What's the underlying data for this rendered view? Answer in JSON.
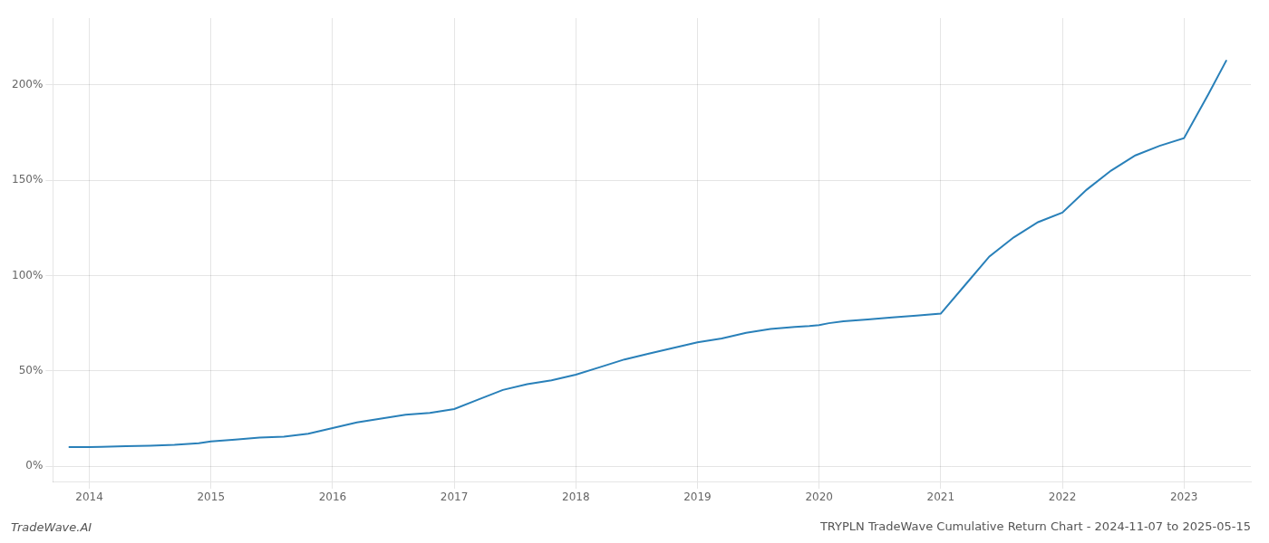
{
  "chart_data": {
    "type": "line",
    "title": "TRYPLN TradeWave Cumulative Return Chart - 2024-11-07 to 2025-05-15",
    "annotations": [
      "TradeWave.AI"
    ],
    "x": [
      2013.83,
      2014.0,
      2014.1,
      2014.3,
      2014.5,
      2014.7,
      2014.9,
      2015.0,
      2015.2,
      2015.4,
      2015.6,
      2015.8,
      2016.0,
      2016.2,
      2016.4,
      2016.6,
      2016.8,
      2017.0,
      2017.2,
      2017.4,
      2017.6,
      2017.8,
      2018.0,
      2018.2,
      2018.4,
      2018.6,
      2018.8,
      2019.0,
      2019.2,
      2019.4,
      2019.6,
      2019.8,
      2019.92,
      2020.0,
      2020.08,
      2020.2,
      2020.4,
      2020.6,
      2020.8,
      2021.0,
      2021.2,
      2021.4,
      2021.6,
      2021.8,
      2022.0,
      2022.2,
      2022.4,
      2022.6,
      2022.8,
      2023.0,
      2023.2,
      2023.35
    ],
    "values": [
      10,
      10,
      10.2,
      10.5,
      10.8,
      11.2,
      12,
      13,
      14,
      15,
      15.5,
      17,
      20,
      23,
      25,
      27,
      28,
      30,
      35,
      40,
      43,
      45,
      48,
      52,
      56,
      59,
      62,
      65,
      67,
      70,
      72,
      73,
      73.5,
      74,
      75,
      76,
      77,
      78,
      79,
      80,
      95,
      110,
      120,
      128,
      133,
      145,
      155,
      163,
      168,
      172,
      195,
      213
    ],
    "color": "#2980b9",
    "xlim": [
      2013.7,
      2023.55
    ],
    "xticks": [
      2014,
      2015,
      2016,
      2017,
      2018,
      2019,
      2020,
      2021,
      2022,
      2023
    ],
    "ylim": [
      -8,
      235
    ],
    "yticks": [
      {
        "value": 0,
        "label": "0%"
      },
      {
        "value": 50,
        "label": "50%"
      },
      {
        "value": 100,
        "label": "100%"
      },
      {
        "value": 150,
        "label": "150%"
      },
      {
        "value": 200,
        "label": "200%"
      }
    ],
    "grid": true
  }
}
